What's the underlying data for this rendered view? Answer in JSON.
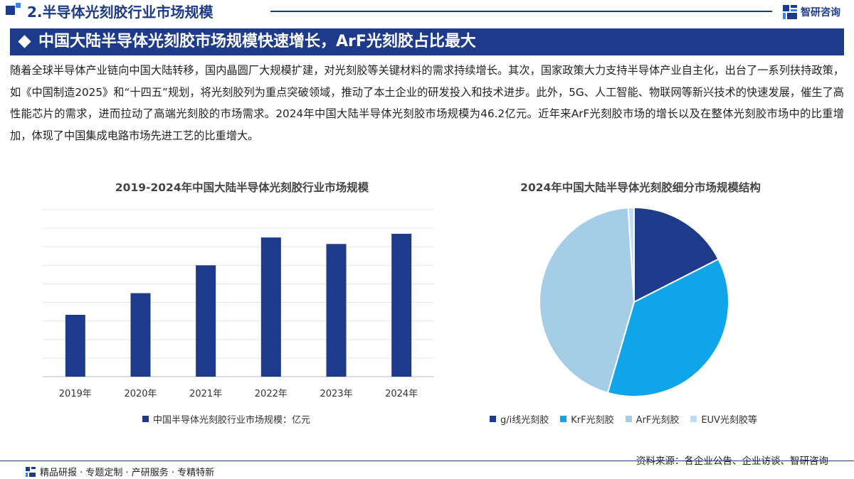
{
  "section": {
    "title": "2.半导体光刻胶行业市场规模"
  },
  "logo": {
    "text": "智研咨询",
    "icon": "zhiyan-logo-icon"
  },
  "banner": {
    "title": "中国大陆半导体光刻胶市场规模快速增长，ArF光刻胶占比最大"
  },
  "paragraph": "随着全球半导体产业链向中国大陆转移，国内晶圆厂大规模扩建，对光刻胶等关键材料的需求持续增长。其次，国家政策大力支持半导体产业自主化，出台了一系列扶持政策，如《中国制造2025》和“十四五”规划，将光刻胶列为重点突破领域，推动了本土企业的研发投入和技术进步。此外，5G、人工智能、物联网等新兴技术的快速发展，催生了高性能芯片的需求，进而拉动了高端光刻胶的市场需求。2024年中国大陆半导体光刻胶市场规模为46.2亿元。近年来ArF光刻胶市场的增长以及在整体光刻胶市场中的比重增加，体现了中国集成电路市场先进工艺的比重增大。",
  "chart_data": [
    {
      "type": "bar",
      "title": "2019-2024年中国大陆半导体光刻胶行业市场规模",
      "categories": [
        "2019年",
        "2020年",
        "2021年",
        "2022年",
        "2023年",
        "2024年"
      ],
      "series": [
        {
          "name": "中国半导体光刻胶行业市场规模：亿元",
          "values": [
            20.0,
            27.0,
            36.0,
            45.0,
            42.9,
            46.2
          ],
          "color": "#1e3a8a"
        }
      ],
      "ylim": [
        0,
        54
      ],
      "grid": true,
      "legend": "bottom"
    },
    {
      "type": "pie",
      "title": "2024年中国大陆半导体光刻胶细分市场规模结构",
      "labels": [
        "g/i线光刻胶",
        "KrF光刻胶",
        "ArF光刻胶",
        "EUV光刻胶等"
      ],
      "values": [
        17.5,
        37.0,
        44.5,
        1.0
      ],
      "colors": [
        "#1e3a8a",
        "#0ea5e9",
        "#a5cde8",
        "#bfdbfe"
      ],
      "legend": "bottom"
    }
  ],
  "source": "资料来源：各企业公告、企业访谈、智研咨询",
  "footer": {
    "text": "精品研报 · 专题定制 · 产研服务 · 专精特新"
  }
}
